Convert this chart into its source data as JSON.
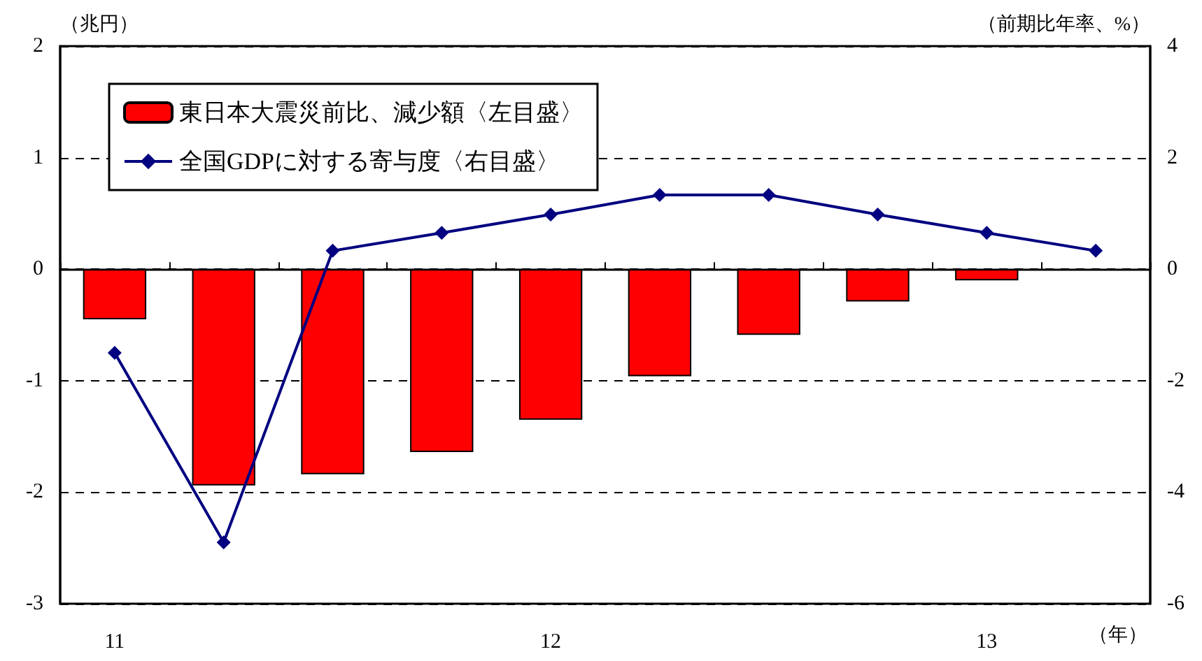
{
  "chart_data": {
    "type": "bar",
    "categories": [
      "11",
      null,
      null,
      null,
      "12",
      null,
      null,
      null,
      "13",
      null
    ],
    "series": [
      {
        "name": "東日本大震災前比、減少額〈左目盛〉",
        "color": "#ff0000",
        "values": [
          -0.45,
          -1.94,
          -1.84,
          -1.64,
          -1.35,
          -0.96,
          -0.59,
          -0.29,
          -0.1,
          null
        ]
      },
      {
        "name": "全国GDPに対する寄与度〈右目盛〉",
        "type": "line",
        "axis": "y2",
        "color": "#000080",
        "marker": "diamond",
        "values": [
          -1.5,
          -4.9,
          0.33,
          0.65,
          0.98,
          1.33,
          1.33,
          0.98,
          0.65,
          0.33
        ]
      }
    ],
    "ylabel": "（兆円）",
    "y2label": "（前期比年率、%）",
    "xlabel": "（年）",
    "ylim": [
      -3,
      2
    ],
    "yticks": [
      -3,
      -2,
      -1,
      0,
      1,
      2
    ],
    "y2lim": [
      -6,
      4
    ],
    "y2ticks": [
      -6,
      -4,
      -2,
      0,
      2,
      4
    ],
    "grid": "y",
    "legend": "top left"
  }
}
